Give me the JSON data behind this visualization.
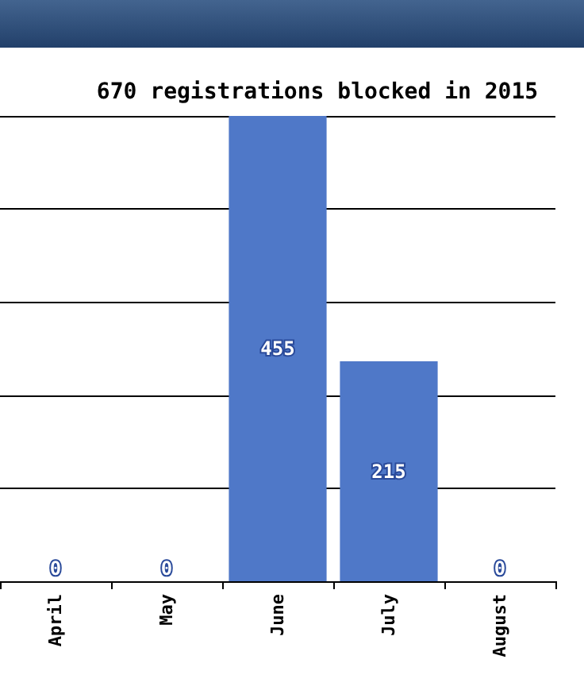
{
  "chart_data": {
    "type": "bar",
    "title": "670 registrations blocked in 2015",
    "categories": [
      "April",
      "May",
      "June",
      "July",
      "August"
    ],
    "values": [
      0,
      0,
      455,
      215,
      0
    ],
    "color": "#4f78c8",
    "ylim": [
      0,
      455
    ],
    "yticks": [
      {
        "value": 0,
        "label": null
      },
      {
        "value": 91,
        "label": null
      },
      {
        "value": 182,
        "label": null
      },
      {
        "value": 273,
        "label": null
      },
      {
        "value": 364,
        "label": null
      },
      {
        "value": 455,
        "label": null
      }
    ],
    "grid": "y",
    "tick_labels": "x",
    "data_labels": true
  }
}
